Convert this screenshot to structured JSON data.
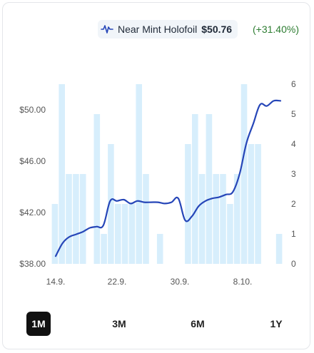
{
  "header": {
    "variant_label": "Near Mint Holofoil",
    "price": "$50.76",
    "change": "(+31.40%)"
  },
  "colors": {
    "line": "#2646b8",
    "bar": "#d7eefc",
    "change_positive": "#2e7d32",
    "active_range_bg": "#111111"
  },
  "ranges": [
    "1M",
    "3M",
    "6M",
    "1Y"
  ],
  "active_range": "1M",
  "chart_data": {
    "type": "line+bar",
    "x_ticks": [
      "14.9.",
      "22.9.",
      "30.9.",
      "8.10."
    ],
    "left_axis": {
      "ticks": [
        "$50.00",
        "$46.00",
        "$42.00",
        "$38.00"
      ],
      "ylim": [
        38,
        52
      ]
    },
    "right_axis": {
      "ticks": [
        "6",
        "5",
        "4",
        "3",
        "2",
        "1",
        "0"
      ],
      "ylim": [
        0,
        6
      ]
    },
    "series": [
      {
        "type": "line",
        "values": [
          38.6,
          39.6,
          40.1,
          40.3,
          40.5,
          40.8,
          40.9,
          41.0,
          42.9,
          42.9,
          43.0,
          42.7,
          42.9,
          42.8,
          42.8,
          42.8,
          42.7,
          42.8,
          43.1,
          41.4,
          41.7,
          42.5,
          42.9,
          43.1,
          43.2,
          43.4,
          43.6,
          45.0,
          47.4,
          48.9,
          50.4,
          50.3,
          50.7,
          50.7
        ]
      },
      {
        "type": "bar",
        "values": [
          2,
          6,
          3,
          3,
          3,
          0,
          5,
          1,
          4,
          2,
          2,
          2,
          6,
          3,
          0,
          1,
          0,
          0,
          0,
          4,
          5,
          3,
          5,
          3,
          3,
          2,
          3,
          6,
          4,
          4,
          0,
          0,
          1
        ]
      }
    ]
  }
}
